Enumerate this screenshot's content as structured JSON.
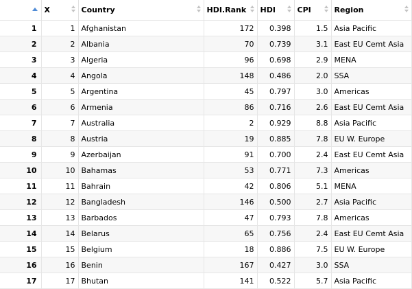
{
  "columns": [
    {
      "key": "idx",
      "label": ""
    },
    {
      "key": "x",
      "label": "X"
    },
    {
      "key": "country",
      "label": "Country"
    },
    {
      "key": "hdi_rank",
      "label": "HDI.Rank"
    },
    {
      "key": "hdi",
      "label": "HDI"
    },
    {
      "key": "cpi",
      "label": "CPI"
    },
    {
      "key": "region",
      "label": "Region"
    }
  ],
  "rows": [
    [
      "1",
      "1",
      "Afghanistan",
      "172",
      "0.398",
      "1.5",
      "Asia Pacific"
    ],
    [
      "2",
      "2",
      "Albania",
      "70",
      "0.739",
      "3.1",
      "East EU Cemt Asia"
    ],
    [
      "3",
      "3",
      "Algeria",
      "96",
      "0.698",
      "2.9",
      "MENA"
    ],
    [
      "4",
      "4",
      "Angola",
      "148",
      "0.486",
      "2.0",
      "SSA"
    ],
    [
      "5",
      "5",
      "Argentina",
      "45",
      "0.797",
      "3.0",
      "Americas"
    ],
    [
      "6",
      "6",
      "Armenia",
      "86",
      "0.716",
      "2.6",
      "East EU Cemt Asia"
    ],
    [
      "7",
      "7",
      "Australia",
      "2",
      "0.929",
      "8.8",
      "Asia Pacific"
    ],
    [
      "8",
      "8",
      "Austria",
      "19",
      "0.885",
      "7.8",
      "EU W. Europe"
    ],
    [
      "9",
      "9",
      "Azerbaijan",
      "91",
      "0.700",
      "2.4",
      "East EU Cemt Asia"
    ],
    [
      "10",
      "10",
      "Bahamas",
      "53",
      "0.771",
      "7.3",
      "Americas"
    ],
    [
      "11",
      "11",
      "Bahrain",
      "42",
      "0.806",
      "5.1",
      "MENA"
    ],
    [
      "12",
      "12",
      "Bangladesh",
      "146",
      "0.500",
      "2.7",
      "Asia Pacific"
    ],
    [
      "13",
      "13",
      "Barbados",
      "47",
      "0.793",
      "7.8",
      "Americas"
    ],
    [
      "14",
      "14",
      "Belarus",
      "65",
      "0.756",
      "2.4",
      "East EU Cemt Asia"
    ],
    [
      "15",
      "15",
      "Belgium",
      "18",
      "0.886",
      "7.5",
      "EU W. Europe"
    ],
    [
      "16",
      "16",
      "Benin",
      "167",
      "0.427",
      "3.0",
      "SSA"
    ],
    [
      "17",
      "17",
      "Bhutan",
      "141",
      "0.522",
      "5.7",
      "Asia Pacific"
    ]
  ],
  "colors": {
    "sort_active": "#4f8bd6",
    "sort_inactive": "#c3c3c3",
    "row_alt": "#f7f7f7",
    "grid_line": "#e6e6e6"
  }
}
